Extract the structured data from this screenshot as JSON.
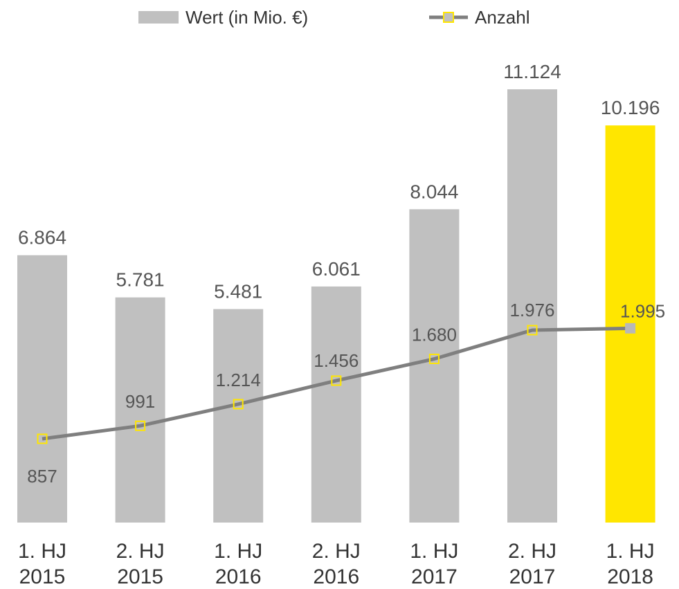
{
  "chart_data": {
    "type": "bar",
    "categories": [
      [
        "1. HJ",
        "2015"
      ],
      [
        "2. HJ",
        "2015"
      ],
      [
        "1. HJ",
        "2016"
      ],
      [
        "2. HJ",
        "2016"
      ],
      [
        "1. HJ",
        "2017"
      ],
      [
        "2. HJ",
        "2017"
      ],
      [
        "1. HJ",
        "2018"
      ]
    ],
    "series": [
      {
        "name": "Wert (in Mio. €)",
        "kind": "bar",
        "values": [
          6864,
          5781,
          5481,
          6061,
          8044,
          11124,
          10196
        ],
        "labels": [
          "6.864",
          "5.781",
          "5.481",
          "6.061",
          "8.044",
          "11.124",
          "10.196"
        ],
        "color": "#c0c0c0",
        "highlight_color": "#ffe600",
        "highlight_index": 6
      },
      {
        "name": "Anzahl",
        "kind": "line",
        "values": [
          857,
          991,
          1214,
          1456,
          1680,
          1976,
          1995
        ],
        "labels": [
          "857",
          "991",
          "1.214",
          "1.456",
          "1.680",
          "1.976",
          "1.995"
        ],
        "color": "#7f7f7f",
        "marker_color": "#ffe600"
      }
    ],
    "title": "",
    "xlabel": "",
    "ylabel": "",
    "legend": "top",
    "grid": false
  }
}
